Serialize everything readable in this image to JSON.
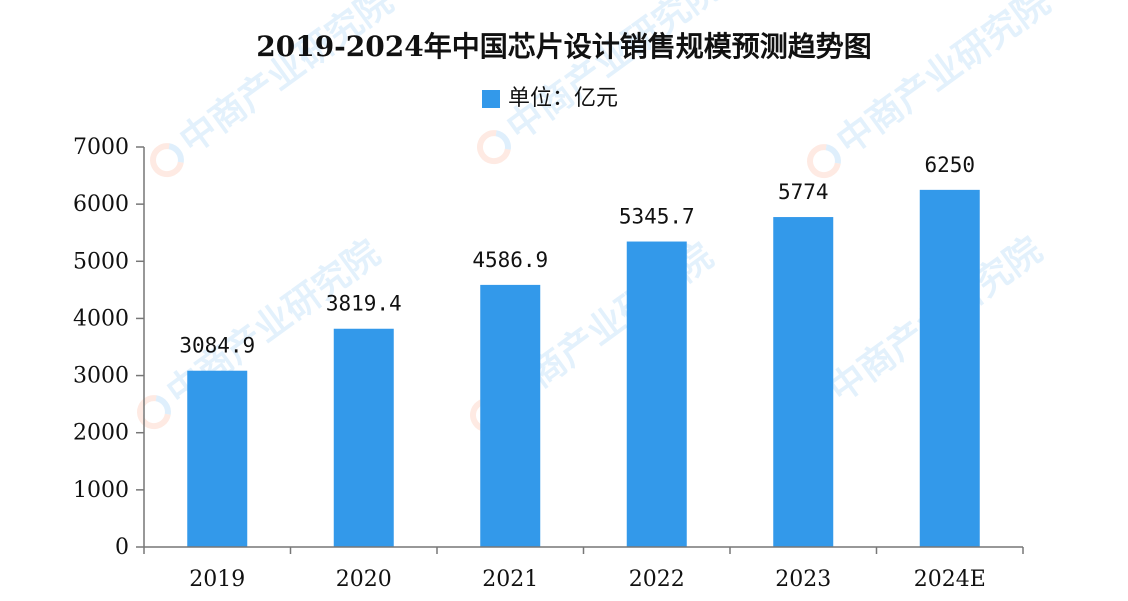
{
  "chart_data": {
    "type": "bar",
    "title": "2019-2024年中国芯片设计销售规模预测趋势图",
    "legend": {
      "label": "单位：亿元",
      "color": "#3399ea",
      "placement": "top-center"
    },
    "categories": [
      "2019",
      "2020",
      "2021",
      "2022",
      "2023",
      "2024E"
    ],
    "series": [
      {
        "values": [
          3084.9,
          3819.4,
          4586.9,
          5345.7,
          5774,
          6250
        ],
        "labels": [
          "3084.9",
          "3819.4",
          "4586.9",
          "5345.7",
          "5774",
          "6250"
        ],
        "color": "#3399ea"
      }
    ],
    "yticks": [
      "0",
      "1000",
      "2000",
      "3000",
      "4000",
      "5000",
      "6000",
      "7000"
    ],
    "ylim": [
      0,
      7000
    ],
    "grid": false
  },
  "watermark": {
    "text": "中商产业研究院",
    "icon": "orange-blue-c-logo-icon"
  }
}
